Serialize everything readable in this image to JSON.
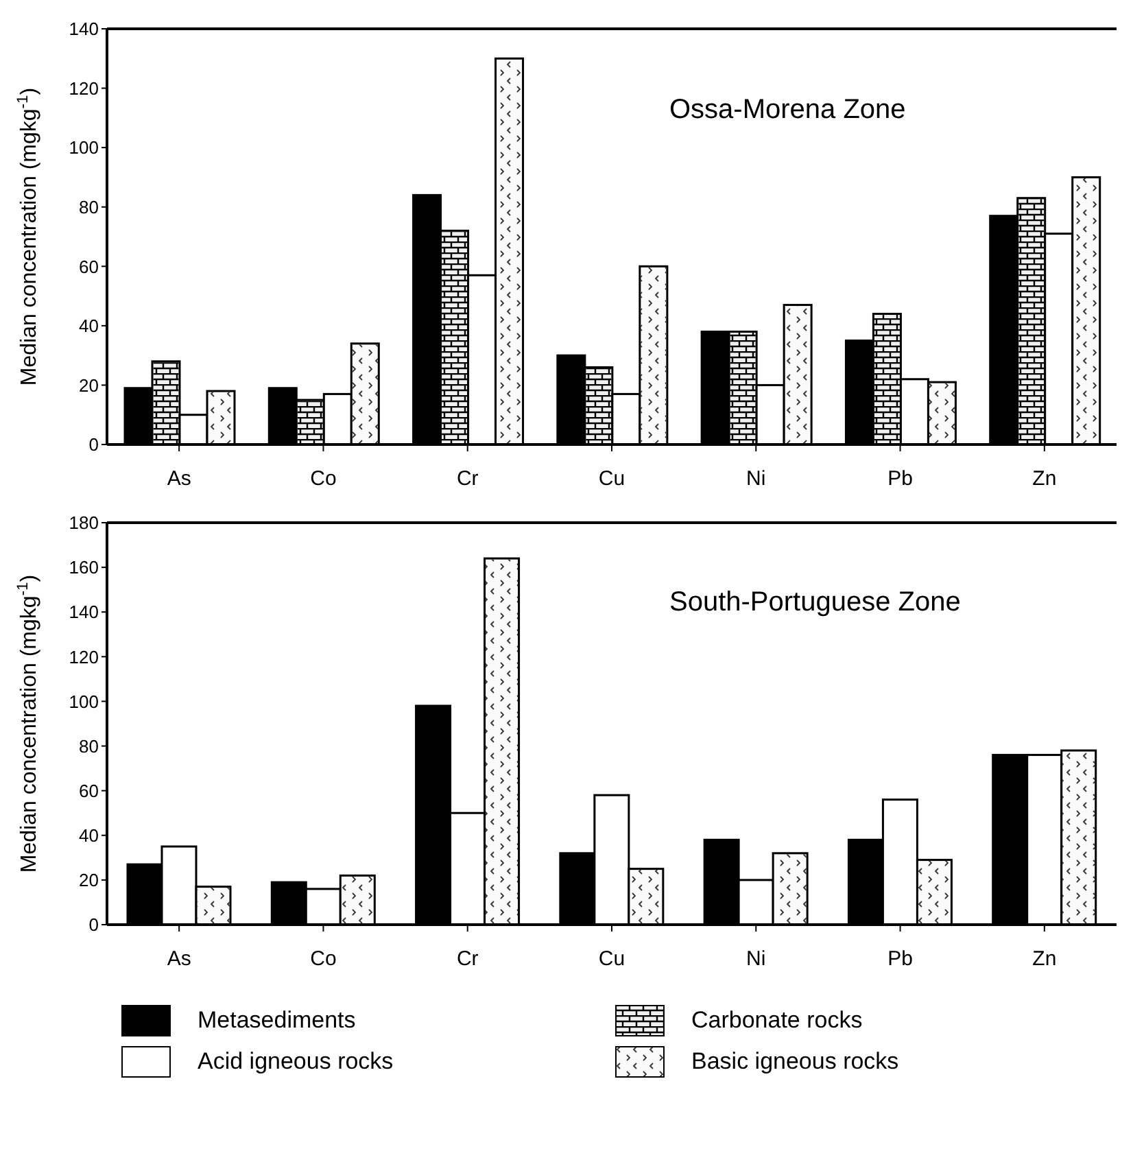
{
  "chart_data": [
    {
      "type": "bar",
      "title": "Ossa-Morena Zone",
      "ylabel": "Median concentration (mgkg$^{-1}$)",
      "categories": [
        "As",
        "Co",
        "Cr",
        "Cu",
        "Ni",
        "Pb",
        "Zn"
      ],
      "ylim": [
        0,
        140
      ],
      "yticks": [
        0,
        20,
        40,
        60,
        80,
        100,
        120,
        140
      ],
      "grid": false,
      "legend": "bottom",
      "series": [
        {
          "name": "Metasediments",
          "color": "#000000",
          "values": [
            19,
            19,
            84,
            30,
            38,
            35,
            77
          ]
        },
        {
          "name": "Carbonate rocks",
          "color": "#f0f0f0",
          "values": [
            28,
            15,
            72,
            26,
            38,
            44,
            83
          ]
        },
        {
          "name": "Acid igneous rocks",
          "color": "#ffffff",
          "values": [
            10,
            17,
            57,
            17,
            20,
            22,
            71
          ]
        },
        {
          "name": "Basic igneous rocks",
          "color": "#fafafa",
          "values": [
            18,
            34,
            130,
            60,
            47,
            21,
            90
          ]
        }
      ]
    },
    {
      "type": "bar",
      "title": "South-Portuguese Zone",
      "ylabel": "Median concentration (mgkg$^{-1}$)",
      "categories": [
        "As",
        "Co",
        "Cr",
        "Cu",
        "Ni",
        "Pb",
        "Zn"
      ],
      "ylim": [
        0,
        180
      ],
      "yticks": [
        0,
        20,
        40,
        60,
        80,
        100,
        120,
        140,
        160,
        180
      ],
      "grid": false,
      "legend": "bottom",
      "series": [
        {
          "name": "Metasediments",
          "color": "#000000",
          "values": [
            27,
            19,
            98,
            32,
            38,
            38,
            76
          ]
        },
        {
          "name": "Acid igneous rocks",
          "color": "#ffffff",
          "values": [
            35,
            16,
            50,
            58,
            20,
            56,
            76
          ]
        },
        {
          "name": "Basic igneous rocks",
          "color": "#fafafa",
          "values": [
            17,
            22,
            164,
            25,
            32,
            29,
            78
          ]
        }
      ]
    }
  ]
}
